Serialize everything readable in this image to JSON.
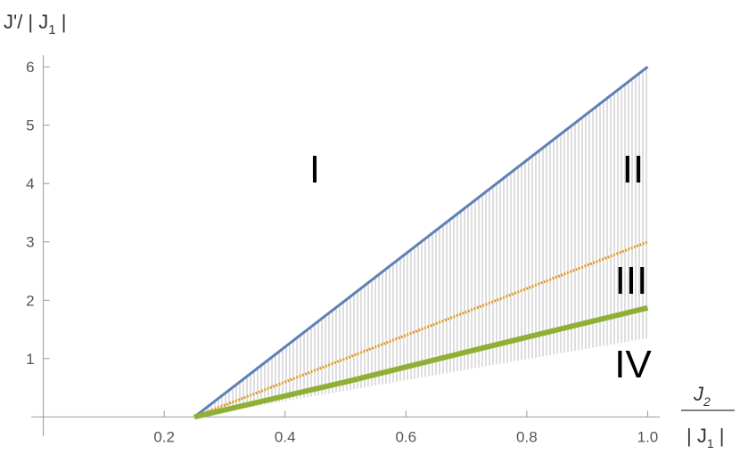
{
  "chart_data": {
    "type": "line",
    "ylabel": [
      "J'/ | J",
      "1",
      " |"
    ],
    "xlabel_num": [
      "J",
      "2"
    ],
    "xlabel_den": [
      "| J",
      "1",
      " |"
    ],
    "x": [
      0.25,
      0.5,
      0.75,
      1.0
    ],
    "series": [
      {
        "color": "#5e81b5",
        "values": [
          0,
          2,
          4,
          6
        ]
      },
      {
        "color": "#e19c24",
        "values": [
          0,
          1,
          2,
          3
        ]
      },
      {
        "color": "#8fb032",
        "values": [
          0,
          0.6,
          1.24,
          1.87
        ]
      }
    ],
    "shade": {
      "color": "#c8c8c8",
      "lower": [
        0,
        0.45,
        0.9,
        1.35
      ]
    },
    "regions": [
      "I",
      "II",
      "III",
      "IV"
    ],
    "xlim": [
      -0.02,
      1.02
    ],
    "ylim": [
      -0.33,
      6.2
    ],
    "xticks": [
      0.2,
      0.4,
      0.6,
      0.8,
      {
        "value": 1.0,
        "label": "1.0"
      }
    ],
    "yticks": [
      1,
      2,
      3,
      4,
      5,
      6
    ]
  }
}
